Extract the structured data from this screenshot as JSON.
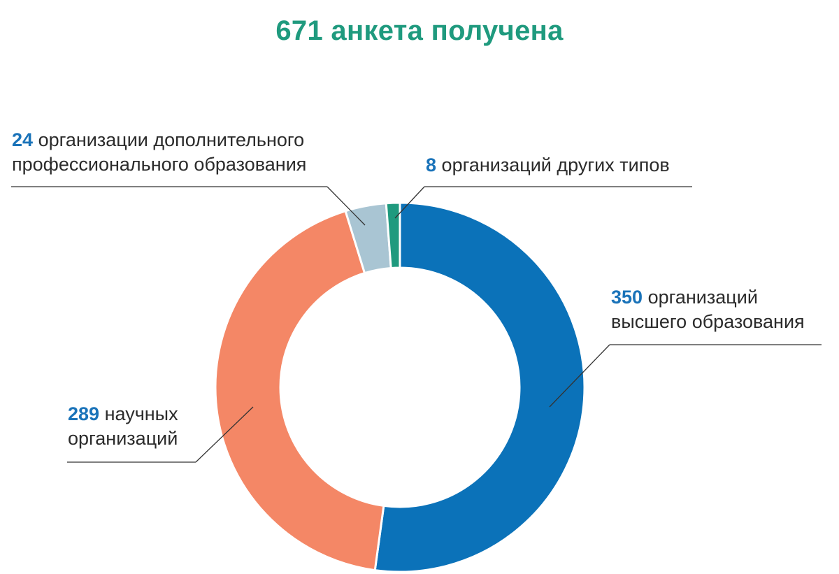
{
  "title": "671 анкета получена",
  "colors": {
    "title": "#1f9a7e",
    "number": "#1a73b9"
  },
  "chart_data": {
    "type": "pie",
    "variant": "donut",
    "title": "671 анкета получена",
    "total": 671,
    "slices": [
      {
        "value": 350,
        "count_label": "350",
        "text": [
          "организаций",
          "высшего образования"
        ],
        "color": "#0b72b9"
      },
      {
        "value": 289,
        "count_label": "289",
        "text": [
          "научных",
          "организаций"
        ],
        "color": "#f48766"
      },
      {
        "value": 24,
        "count_label": "24",
        "text": [
          "организации дополнительного",
          "профессионального образования"
        ],
        "color": "#a9c5d3"
      },
      {
        "value": 8,
        "count_label": "8",
        "text": [
          "организаций других типов"
        ],
        "color": "#1f9a7e"
      }
    ]
  }
}
